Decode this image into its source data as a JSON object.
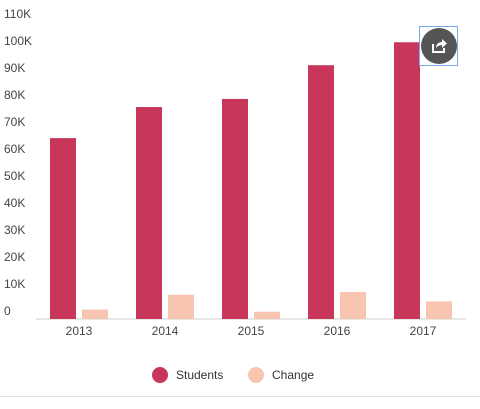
{
  "chart_data": {
    "type": "bar",
    "categories": [
      "2013",
      "2014",
      "2015",
      "2016",
      "2017"
    ],
    "series": [
      {
        "name": "Students",
        "values": [
          67000,
          78500,
          81500,
          94000,
          102500
        ],
        "color": "#c8375a"
      },
      {
        "name": "Change",
        "values": [
          3500,
          9000,
          2700,
          10000,
          6500
        ],
        "color": "#f8c5b0"
      }
    ],
    "y_ticks": [
      "0",
      "10K",
      "20K",
      "30K",
      "40K",
      "50K",
      "60K",
      "70K",
      "80K",
      "90K",
      "100K",
      "110K"
    ],
    "ylim": [
      0,
      110000
    ],
    "grid": false,
    "legend_position": "bottom-center"
  },
  "toolbar": {
    "share_icon": "share-icon"
  }
}
